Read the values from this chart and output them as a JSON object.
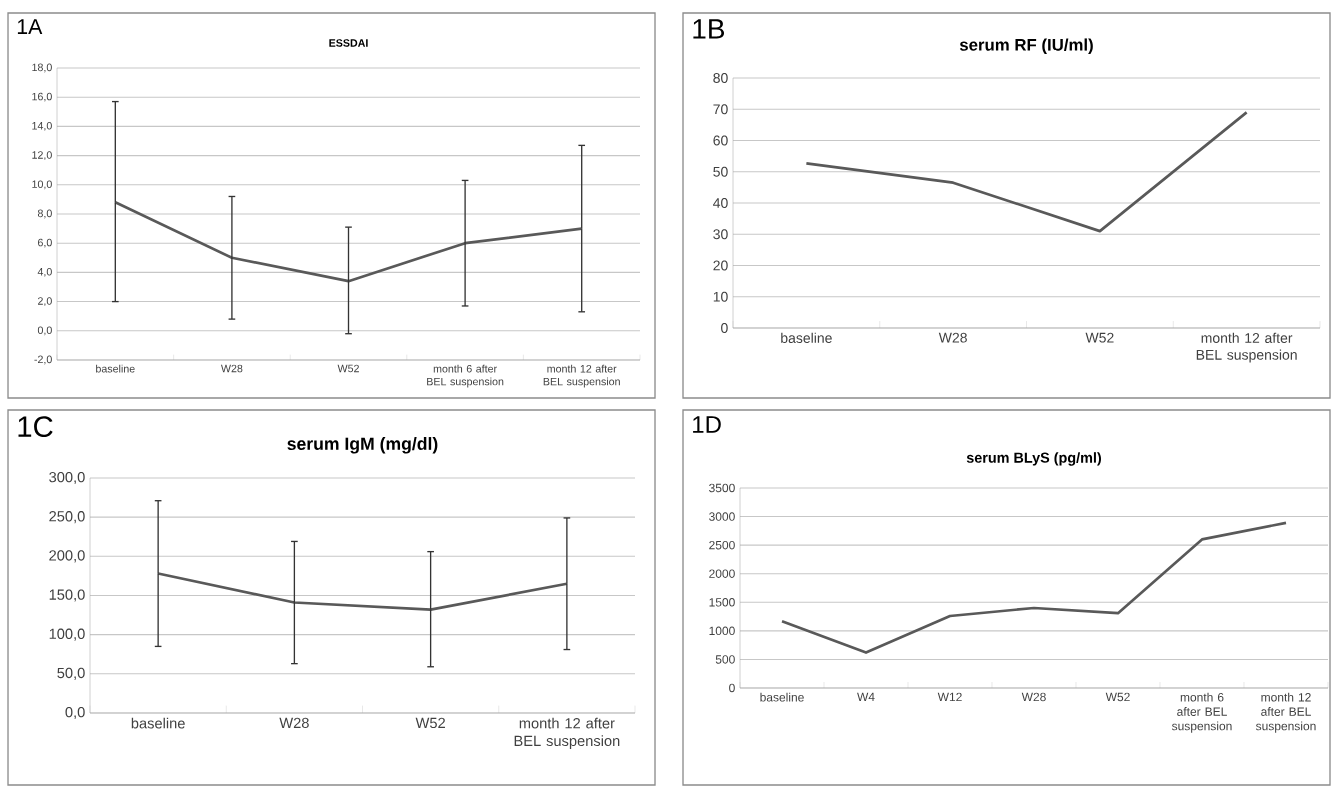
{
  "chart_data": [
    {
      "type": "line",
      "title": "ESSDAI",
      "annotations": [
        "1A"
      ],
      "categories": [
        "baseline",
        "W28",
        "W52",
        "month 6 after BEL suspension",
        "month 12 after BEL suspension"
      ],
      "values": [
        8.8,
        5.0,
        3.4,
        6.0,
        7.0
      ],
      "errors": [
        [
          2.0,
          15.7
        ],
        [
          0.8,
          9.2
        ],
        [
          -0.2,
          7.1
        ],
        [
          1.7,
          10.3
        ],
        [
          1.3,
          12.7
        ]
      ],
      "color": "#595959",
      "ylim": [
        -2,
        18
      ],
      "yticks": [
        {
          "value": -2,
          "label": "-2,0"
        },
        {
          "value": 0,
          "label": "0,0"
        },
        {
          "value": 2,
          "label": "2,0"
        },
        {
          "value": 4,
          "label": "4,0"
        },
        {
          "value": 6,
          "label": "6,0"
        },
        {
          "value": 8,
          "label": "8,0"
        },
        {
          "value": 10,
          "label": "10,0"
        },
        {
          "value": 12,
          "label": "12,0"
        },
        {
          "value": 14,
          "label": "14,0"
        },
        {
          "value": 16,
          "label": "16,0"
        },
        {
          "value": 18,
          "label": "18,0"
        }
      ],
      "grid": "y"
    },
    {
      "type": "line",
      "title": "serum RF (IU/ml)",
      "annotations": [
        "1B"
      ],
      "categories": [
        "baseline",
        "W28",
        "W52",
        "month 12 after BEL suspension"
      ],
      "values": [
        52.7,
        46.5,
        31,
        69
      ],
      "color": "#595959",
      "ylim": [
        0,
        80
      ],
      "yticks": [
        0,
        10,
        20,
        30,
        40,
        50,
        60,
        70,
        80
      ],
      "grid": "y"
    },
    {
      "type": "line",
      "title": "serum IgM (mg/dl)",
      "annotations": [
        "1C"
      ],
      "categories": [
        "baseline",
        "W28",
        "W52",
        "month 12 after BEL suspension"
      ],
      "values": [
        178,
        141,
        132,
        165
      ],
      "errors": [
        [
          85,
          271
        ],
        [
          63,
          219
        ],
        [
          59,
          206
        ],
        [
          81,
          249
        ]
      ],
      "color": "#595959",
      "ylim": [
        0,
        300
      ],
      "yticks": [
        {
          "value": 0,
          "label": "0,0"
        },
        {
          "value": 50,
          "label": "50,0"
        },
        {
          "value": 100,
          "label": "100,0"
        },
        {
          "value": 150,
          "label": "150,0"
        },
        {
          "value": 200,
          "label": "200,0"
        },
        {
          "value": 250,
          "label": "250,0"
        },
        {
          "value": 300,
          "label": "300,0"
        }
      ],
      "grid": "y"
    },
    {
      "type": "line",
      "title": "serum BLyS (pg/ml)",
      "annotations": [
        "1D"
      ],
      "categories": [
        "baseline",
        "W4",
        "W12",
        "W28",
        "W52",
        "month 6 after BEL suspension",
        "month 12 after BEL suspension"
      ],
      "values": [
        1170,
        620,
        1260,
        1400,
        1310,
        2600,
        2890
      ],
      "color": "#595959",
      "ylim": [
        0,
        3500
      ],
      "yticks": [
        0,
        500,
        1000,
        1500,
        2000,
        2500,
        3000,
        3500
      ],
      "grid": "y"
    }
  ]
}
